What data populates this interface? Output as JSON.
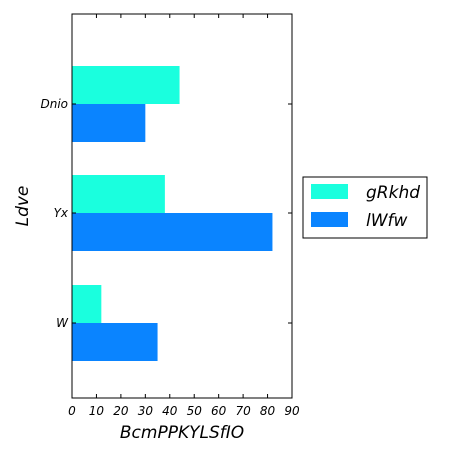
{
  "chart_data": {
    "type": "bar",
    "orientation": "horizontal",
    "categories": [
      "W",
      "Yx",
      "Dnio"
    ],
    "series": [
      {
        "name": "gRkhd",
        "color": "#1affde",
        "values": [
          12,
          38,
          44
        ]
      },
      {
        "name": "lWfw",
        "color": "#0a84ff",
        "values": [
          35,
          82,
          30
        ]
      }
    ],
    "xlabel": "BcmPPKYLSfIO",
    "ylabel": "Ldve",
    "xlim": [
      0,
      90
    ],
    "xticks": [
      "0",
      "10",
      "20",
      "30",
      "40",
      "50",
      "60",
      "70",
      "80",
      "90"
    ],
    "grid": false,
    "legend_position": "right"
  }
}
